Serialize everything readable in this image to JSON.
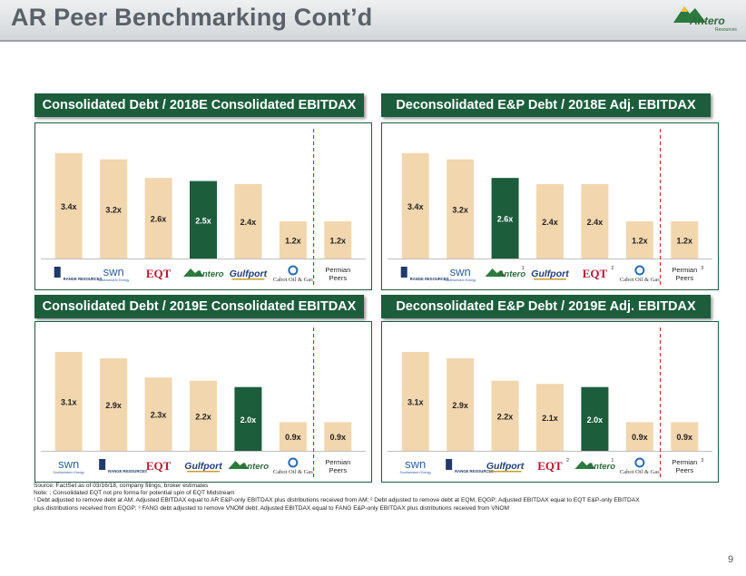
{
  "header": {
    "title": "AR Peer Benchmarking Cont’d",
    "logo_text": "Antero",
    "logo_sub": "Resources"
  },
  "colors": {
    "bar": "#f2d6ae",
    "highlight": "#1c5d3b",
    "header": "#1c5d3b",
    "divider": "#c0392b"
  },
  "chart_data": [
    {
      "type": "bar",
      "title": "Consolidated Debt / 2018E Consolidated EBITDAX",
      "categories": [
        "Range Resources",
        "SWN",
        "EQT",
        "Antero",
        "Gulfport",
        "Cabot Oil & Gas",
        "Permian Peers"
      ],
      "values": [
        3.4,
        3.2,
        2.6,
        2.5,
        2.4,
        1.2,
        1.2
      ],
      "labels": [
        "3.4x",
        "3.2x",
        "2.6x",
        "2.5x",
        "2.4x",
        "1.2x",
        "1.2x"
      ],
      "highlight_index": 3,
      "logos": [
        "range",
        "swn",
        "eqt",
        "antero",
        "gulfport",
        "cabot",
        "permian"
      ],
      "superscripts": [
        "",
        "",
        "",
        "",
        "",
        "",
        ""
      ],
      "ylim": [
        0,
        3.6
      ]
    },
    {
      "type": "bar",
      "title": "Deconsolidated E&P Debt / 2018E Adj. EBITDAX",
      "categories": [
        "Range Resources",
        "SWN",
        "Antero",
        "Gulfport",
        "EQT",
        "Cabot Oil & Gas",
        "Permian Peers"
      ],
      "values": [
        3.4,
        3.2,
        2.6,
        2.4,
        2.4,
        1.2,
        1.2
      ],
      "labels": [
        "3.4x",
        "3.2x",
        "2.6x",
        "2.4x",
        "2.4x",
        "1.2x",
        "1.2x"
      ],
      "highlight_index": 2,
      "logos": [
        "range",
        "swn",
        "antero",
        "gulfport",
        "eqt",
        "cabot",
        "permian"
      ],
      "superscripts": [
        "",
        "",
        "1",
        "",
        "2",
        "",
        "3"
      ],
      "ylim": [
        0,
        3.6
      ]
    },
    {
      "type": "bar",
      "title": "Consolidated Debt / 2019E Consolidated EBITDAX",
      "categories": [
        "SWN",
        "Range Resources",
        "EQT",
        "Gulfport",
        "Antero",
        "Cabot Oil & Gas",
        "Permian Peers"
      ],
      "values": [
        3.1,
        2.9,
        2.3,
        2.2,
        2.0,
        0.9,
        0.9
      ],
      "labels": [
        "3.1x",
        "2.9x",
        "2.3x",
        "2.2x",
        "2.0x",
        "0.9x",
        "0.9x"
      ],
      "highlight_index": 4,
      "logos": [
        "swn",
        "range",
        "eqt",
        "gulfport",
        "antero",
        "cabot",
        "permian"
      ],
      "superscripts": [
        "",
        "",
        "",
        "",
        "",
        "",
        ""
      ],
      "ylim": [
        0,
        3.3
      ]
    },
    {
      "type": "bar",
      "title": "Deconsolidated E&P Debt / 2019E Adj. EBITDAX",
      "categories": [
        "SWN",
        "Range Resources",
        "Gulfport",
        "EQT",
        "Antero",
        "Cabot Oil & Gas",
        "Permian Peers"
      ],
      "values": [
        3.1,
        2.9,
        2.2,
        2.1,
        2.0,
        0.9,
        0.9
      ],
      "labels": [
        "3.1x",
        "2.9x",
        "2.2x",
        "2.1x",
        "2.0x",
        "0.9x",
        "0.9x"
      ],
      "highlight_index": 4,
      "logos": [
        "swn",
        "range",
        "gulfport",
        "eqt",
        "antero",
        "cabot",
        "permian"
      ],
      "superscripts": [
        "",
        "",
        "",
        "2",
        "1",
        "",
        "3"
      ],
      "ylim": [
        0,
        3.3
      ]
    }
  ],
  "logo_text": {
    "range": "RANGE RESOURCES",
    "swn": "swn",
    "swn_sub": "Southwestern Energy",
    "eqt": "EQT",
    "antero": "Antero",
    "gulfport": "Gulfport",
    "cabot": "Cabot Oil & Gas",
    "permian_line1": "Permian",
    "permian_line2": "Peers"
  },
  "footnotes": {
    "source": "Source: FactSet as of 03/16/18, company filings, broker estimates",
    "note": "Note: ; Consolidated EQT not pro forma for potential spin of EQT Midstream",
    "note1": "¹ Debt adjusted to remove debt at AM; Adjusted EBITDAX equal to AR E&P-only EBITDAX plus distributions received from AM; ² Debt adjusted to remove debt at EQM, EQGP; Adjusted EBITDAX equal to EQT E&P-only EBITDAX",
    "note2": "plus distributions received from EQGP; ³ FANG debt adjusted to remove VNOM debt; Adjusted EBITDAX equal to FANG E&P-only EBITDAX plus distributions received from VNOM"
  },
  "page_number": "9"
}
